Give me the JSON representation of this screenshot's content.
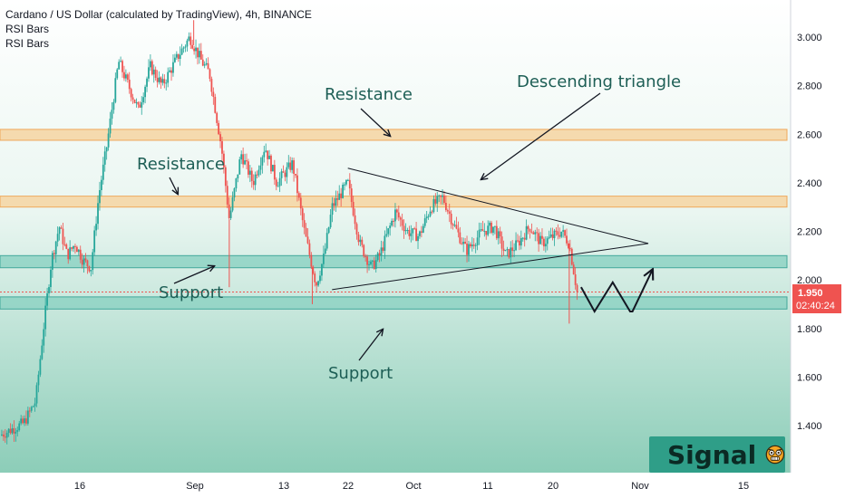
{
  "legend": {
    "title": "Cardano / US Dollar (calculated by TradingView), 4h, BINANCE",
    "indicator_1": "RSI Bars",
    "indicator_2": "RSI Bars"
  },
  "price_label": {
    "value": "1.950",
    "countdown": "02:40:24",
    "color": "#ef5350"
  },
  "badge": {
    "text": "Signal",
    "icon": "angry-face-icon"
  },
  "colors": {
    "up": "#26a69a",
    "down": "#ef5350",
    "resistance_fill": "#f6d7a7",
    "resistance_stroke": "#f0a04b",
    "support_fill": "#8fd3c4",
    "support_stroke": "#2a9d8f",
    "annotation": "#1d5e55"
  },
  "chart_data": {
    "type": "candlestick",
    "title": "Cardano / US Dollar (calculated by TradingView), 4h, BINANCE",
    "ylim": [
      1.2,
      3.1
    ],
    "y_ticks": [
      "3.000",
      "2.800",
      "2.600",
      "2.400",
      "2.200",
      "2.000",
      "1.800",
      "1.600",
      "1.400"
    ],
    "y_tick_values": [
      3.0,
      2.8,
      2.6,
      2.4,
      2.2,
      2.0,
      1.8,
      1.6,
      1.4
    ],
    "x_ticks": [
      "16",
      "Sep",
      "13",
      "22",
      "Oct",
      "11",
      "20",
      "Nov",
      "15"
    ],
    "price_path": [
      [
        0.0,
        1.36
      ],
      [
        0.03,
        1.41
      ],
      [
        0.045,
        1.5
      ],
      [
        0.055,
        1.8
      ],
      [
        0.065,
        2.08
      ],
      [
        0.075,
        2.22
      ],
      [
        0.085,
        2.1
      ],
      [
        0.095,
        2.15
      ],
      [
        0.105,
        2.08
      ],
      [
        0.115,
        2.05
      ],
      [
        0.125,
        2.35
      ],
      [
        0.135,
        2.55
      ],
      [
        0.15,
        2.9
      ],
      [
        0.16,
        2.82
      ],
      [
        0.175,
        2.7
      ],
      [
        0.19,
        2.88
      ],
      [
        0.205,
        2.8
      ],
      [
        0.225,
        2.92
      ],
      [
        0.24,
        3.0
      ],
      [
        0.255,
        2.9
      ],
      [
        0.265,
        2.85
      ],
      [
        0.28,
        2.55
      ],
      [
        0.29,
        2.25
      ],
      [
        0.305,
        2.52
      ],
      [
        0.32,
        2.4
      ],
      [
        0.335,
        2.55
      ],
      [
        0.35,
        2.4
      ],
      [
        0.37,
        2.48
      ],
      [
        0.385,
        2.2
      ],
      [
        0.4,
        1.98
      ],
      [
        0.41,
        2.1
      ],
      [
        0.42,
        2.3
      ],
      [
        0.44,
        2.4
      ],
      [
        0.455,
        2.15
      ],
      [
        0.47,
        2.05
      ],
      [
        0.48,
        2.1
      ],
      [
        0.5,
        2.28
      ],
      [
        0.515,
        2.2
      ],
      [
        0.53,
        2.18
      ],
      [
        0.545,
        2.3
      ],
      [
        0.56,
        2.34
      ],
      [
        0.575,
        2.22
      ],
      [
        0.59,
        2.12
      ],
      [
        0.61,
        2.2
      ],
      [
        0.625,
        2.22
      ],
      [
        0.64,
        2.1
      ],
      [
        0.655,
        2.15
      ],
      [
        0.67,
        2.22
      ],
      [
        0.685,
        2.15
      ],
      [
        0.7,
        2.18
      ],
      [
        0.71,
        2.2
      ],
      [
        0.72,
        2.15
      ],
      [
        0.73,
        1.95
      ]
    ],
    "resistance_zones": [
      [
        2.575,
        2.62
      ],
      [
        2.3,
        2.345
      ]
    ],
    "support_zones": [
      [
        2.05,
        2.1
      ],
      [
        1.88,
        1.93
      ]
    ],
    "triangle": {
      "upper": [
        [
          0.44,
          2.46
        ],
        [
          0.82,
          2.15
        ]
      ],
      "lower": [
        [
          0.42,
          1.96
        ],
        [
          0.82,
          2.15
        ]
      ]
    },
    "projection": [
      [
        0.735,
        1.97
      ],
      [
        0.752,
        1.87
      ],
      [
        0.775,
        1.99
      ],
      [
        0.797,
        1.87
      ],
      [
        0.8,
        1.87
      ],
      [
        0.825,
        2.04
      ]
    ],
    "annotations": {
      "resistance_top": "Resistance",
      "resistance_mid": "Resistance",
      "support_mid": "Support",
      "support_low": "Support",
      "triangle": "Descending triangle"
    }
  }
}
